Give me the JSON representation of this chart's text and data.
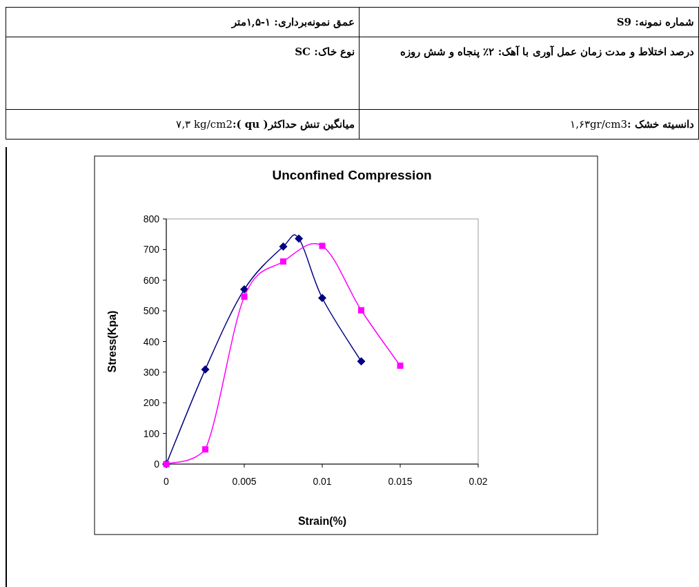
{
  "chart_data": {
    "type": "line",
    "title": "Unconfined Compression",
    "xlabel": "Strain(%)",
    "ylabel": "Stress(Kpa)",
    "xlim": [
      0,
      0.02
    ],
    "xticks": [
      0,
      0.005,
      0.01,
      0.015,
      0.02
    ],
    "ylim": [
      0,
      800
    ],
    "yticks": [
      0,
      100,
      200,
      300,
      400,
      500,
      600,
      700,
      800
    ],
    "grid": false,
    "line_style": "solid",
    "series": [
      {
        "color": "#000080",
        "marker": "diamond",
        "x": [
          0,
          0.0025,
          0.005,
          0.0075,
          0.0085,
          0.01,
          0.0125
        ],
        "values": [
          0,
          309,
          570,
          710,
          736,
          542,
          335
        ]
      },
      {
        "color": "#ff00ff",
        "marker": "square",
        "x": [
          0,
          0.0025,
          0.005,
          0.0075,
          0.01,
          0.0125,
          0.015
        ],
        "values": [
          0,
          48,
          546,
          661,
          712,
          502,
          321
        ]
      }
    ],
    "annotations": [
      "**شماره نمونه: S9**",
      "**عمق نمونه‌برداری: ۱-۱,۵متر**",
      "**درصد اختلاط و مدت زمان  عمل آوری  با آهک: ۲٪ پنجاه و شش روزه**",
      "**نوع خاک: SC**",
      "**دانسیته خشک :**۱,۶۳gr/cm3",
      "**میانگین تنش حداکثر( qu ):**۷,۳ kg/cm2"
    ]
  }
}
